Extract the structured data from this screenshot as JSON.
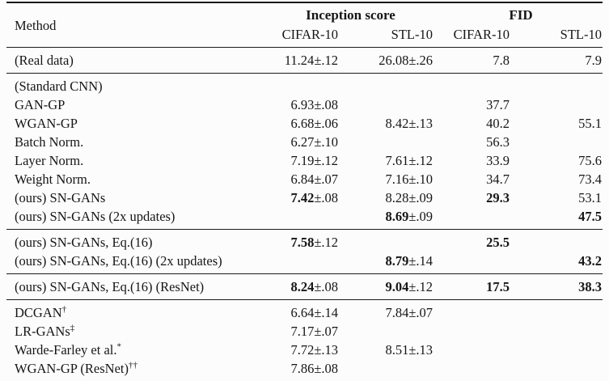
{
  "header": {
    "method_label": "Method",
    "groups": [
      {
        "label": "Inception score"
      },
      {
        "label": "FID"
      }
    ],
    "sub_columns": [
      "CIFAR-10",
      "STL-10",
      "CIFAR-10",
      "STL-10"
    ]
  },
  "sections": [
    {
      "name": "real-data",
      "rows": [
        {
          "method": {
            "label": "(Real data)"
          },
          "cells": [
            {
              "main": "11.24",
              "pm": "±.12"
            },
            {
              "main": "26.08",
              "pm": "±.26"
            },
            {
              "main": "7.8"
            },
            {
              "main": "7.9"
            }
          ]
        }
      ]
    },
    {
      "name": "standard-cnn",
      "rows": [
        {
          "method": {
            "label": "(Standard CNN)"
          },
          "cells": [
            null,
            null,
            null,
            null
          ]
        },
        {
          "method": {
            "label": "GAN-GP"
          },
          "cells": [
            {
              "main": "6.93",
              "pm": "±.08"
            },
            null,
            {
              "main": "37.7"
            },
            null
          ]
        },
        {
          "method": {
            "label": "WGAN-GP"
          },
          "cells": [
            {
              "main": "6.68",
              "pm": "±.06"
            },
            {
              "main": "8.42",
              "pm": "±.13"
            },
            {
              "main": "40.2"
            },
            {
              "main": "55.1"
            }
          ]
        },
        {
          "method": {
            "label": "Batch Norm."
          },
          "cells": [
            {
              "main": "6.27",
              "pm": "±.10"
            },
            null,
            {
              "main": "56.3"
            },
            null
          ]
        },
        {
          "method": {
            "label": "Layer Norm."
          },
          "cells": [
            {
              "main": "7.19",
              "pm": "±.12"
            },
            {
              "main": "7.61",
              "pm": "±.12"
            },
            {
              "main": "33.9"
            },
            {
              "main": "75.6"
            }
          ]
        },
        {
          "method": {
            "label": "Weight Norm."
          },
          "cells": [
            {
              "main": "6.84",
              "pm": "±.07"
            },
            {
              "main": "7.16",
              "pm": "±.10"
            },
            {
              "main": "34.7"
            },
            {
              "main": "73.4"
            }
          ]
        },
        {
          "method": {
            "label": "(ours) SN-GANs"
          },
          "cells": [
            {
              "main": "7.42",
              "pm": "±.08",
              "bold": true
            },
            {
              "main": "8.28",
              "pm": "±.09"
            },
            {
              "main": "29.3",
              "bold": true
            },
            {
              "main": "53.1"
            }
          ]
        },
        {
          "method": {
            "label": "(ours) SN-GANs (2x updates)"
          },
          "cells": [
            null,
            {
              "main": "8.69",
              "pm": "±.09",
              "bold": true
            },
            null,
            {
              "main": "47.5",
              "bold": true
            }
          ]
        }
      ]
    },
    {
      "name": "eq16",
      "rows": [
        {
          "method": {
            "label": "(ours) SN-GANs, Eq.(16)"
          },
          "cells": [
            {
              "main": "7.58",
              "pm": "±.12",
              "bold": true
            },
            null,
            {
              "main": "25.5",
              "bold": true
            },
            null
          ]
        },
        {
          "method": {
            "label": "(ours) SN-GANs, Eq.(16) (2x updates)"
          },
          "cells": [
            null,
            {
              "main": "8.79",
              "pm": "±.14",
              "bold": true
            },
            null,
            {
              "main": "43.2",
              "bold": true
            }
          ]
        }
      ]
    },
    {
      "name": "eq16-resnet",
      "rows": [
        {
          "method": {
            "label": "(ours) SN-GANs, Eq.(16) (ResNet)"
          },
          "cells": [
            {
              "main": "8.24",
              "pm": "±.08",
              "bold": true
            },
            {
              "main": "9.04",
              "pm": "±.12",
              "bold": true
            },
            {
              "main": "17.5",
              "bold": true
            },
            {
              "main": "38.3",
              "bold": true
            }
          ]
        }
      ]
    },
    {
      "name": "prior-work",
      "rows": [
        {
          "method": {
            "label": "DCGAN",
            "sup": "†"
          },
          "cells": [
            {
              "main": "6.64",
              "pm": "±.14"
            },
            {
              "main": "7.84",
              "pm": "±.07"
            },
            null,
            null
          ]
        },
        {
          "method": {
            "label": "LR-GANs",
            "sup": "‡"
          },
          "cells": [
            {
              "main": "7.17",
              "pm": "±.07"
            },
            null,
            null,
            null
          ]
        },
        {
          "method": {
            "label": "Warde-Farley et al.",
            "sup": "*"
          },
          "cells": [
            {
              "main": "7.72",
              "pm": "±.13"
            },
            {
              "main": "8.51",
              "pm": "±.13"
            },
            null,
            null
          ]
        },
        {
          "method": {
            "label": "WGAN-GP (ResNet)",
            "sup": "††"
          },
          "cells": [
            {
              "main": "7.86",
              "pm": "±.08"
            },
            null,
            null,
            null
          ]
        }
      ]
    }
  ],
  "colors": {
    "background": "#fcfcfc",
    "text": "#161616",
    "rule": "#1c1c1c"
  }
}
